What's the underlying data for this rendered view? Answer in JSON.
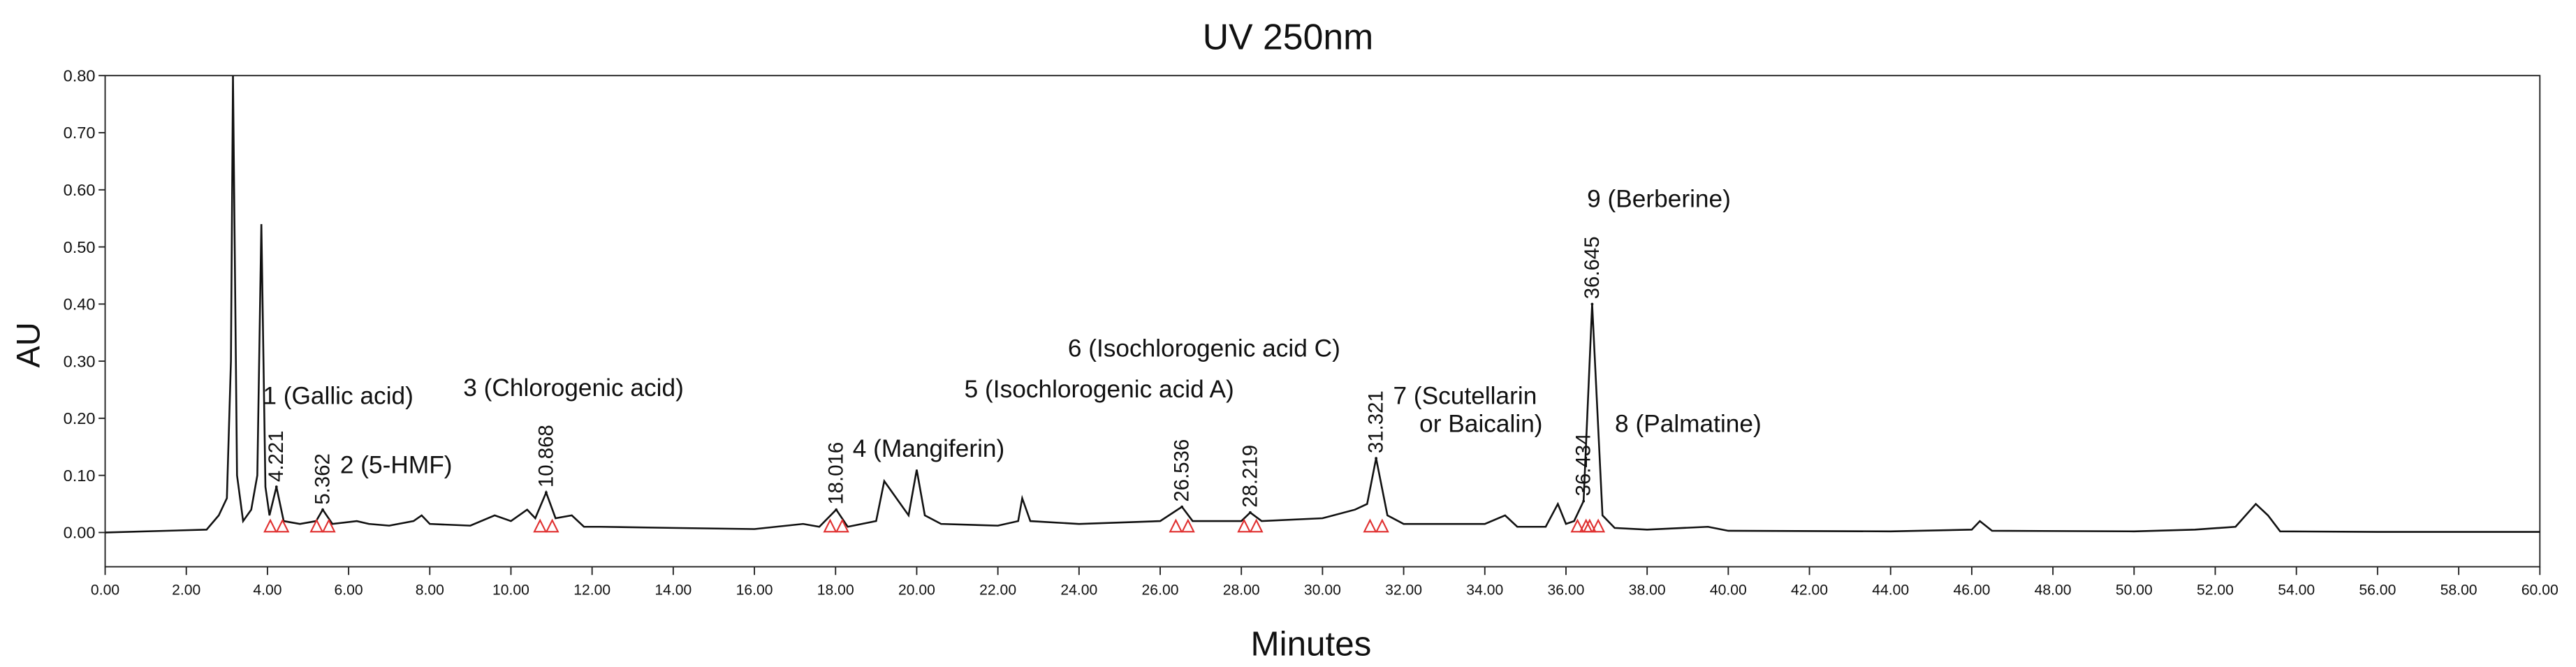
{
  "chart_data": {
    "type": "line",
    "title": "UV 250nm",
    "x_label": "Minutes",
    "y_label": "AU",
    "xlim": [
      0,
      60
    ],
    "ylim": [
      -0.06,
      0.8
    ],
    "xticks": [
      {
        "value": 0,
        "label": "0.00"
      },
      {
        "value": 2,
        "label": "2.00"
      },
      {
        "value": 4,
        "label": "4.00"
      },
      {
        "value": 6,
        "label": "6.00"
      },
      {
        "value": 8,
        "label": "8.00"
      },
      {
        "value": 10,
        "label": "10.00"
      },
      {
        "value": 12,
        "label": "12.00"
      },
      {
        "value": 14,
        "label": "14.00"
      },
      {
        "value": 16,
        "label": "16.00"
      },
      {
        "value": 18,
        "label": "18.00"
      },
      {
        "value": 20,
        "label": "20.00"
      },
      {
        "value": 22,
        "label": "22.00"
      },
      {
        "value": 24,
        "label": "24.00"
      },
      {
        "value": 26,
        "label": "26.00"
      },
      {
        "value": 28,
        "label": "28.00"
      },
      {
        "value": 30,
        "label": "30.00"
      },
      {
        "value": 32,
        "label": "32.00"
      },
      {
        "value": 34,
        "label": "34.00"
      },
      {
        "value": 36,
        "label": "36.00"
      },
      {
        "value": 38,
        "label": "38.00"
      },
      {
        "value": 40,
        "label": "40.00"
      },
      {
        "value": 42,
        "label": "42.00"
      },
      {
        "value": 44,
        "label": "44.00"
      },
      {
        "value": 46,
        "label": "46.00"
      },
      {
        "value": 48,
        "label": "48.00"
      },
      {
        "value": 50,
        "label": "50.00"
      },
      {
        "value": 52,
        "label": "52.00"
      },
      {
        "value": 54,
        "label": "54.00"
      },
      {
        "value": 56,
        "label": "56.00"
      },
      {
        "value": 58,
        "label": "58.00"
      },
      {
        "value": 60,
        "label": "60.00"
      }
    ],
    "yticks": [
      {
        "value": 0,
        "label": "0.00"
      },
      {
        "value": 0.1,
        "label": "0.10"
      },
      {
        "value": 0.2,
        "label": "0.20"
      },
      {
        "value": 0.3,
        "label": "0.30"
      },
      {
        "value": 0.4,
        "label": "0.40"
      },
      {
        "value": 0.5,
        "label": "0.50"
      },
      {
        "value": 0.6,
        "label": "0.60"
      },
      {
        "value": 0.7,
        "label": "0.70"
      },
      {
        "value": 0.8,
        "label": "0.80"
      }
    ],
    "color": "#111111",
    "x": [
      0,
      2.5,
      2.8,
      3.0,
      3.1,
      3.15,
      3.25,
      3.4,
      3.6,
      3.75,
      3.85,
      3.95,
      4.05,
      4.221,
      4.4,
      4.8,
      5.2,
      5.362,
      5.6,
      6.2,
      6.5,
      7.0,
      7.6,
      7.8,
      8.0,
      9.0,
      9.6,
      10.0,
      10.4,
      10.6,
      10.868,
      11.1,
      11.5,
      11.8,
      12.2,
      14,
      16,
      17.2,
      17.6,
      18.016,
      18.3,
      19,
      19.2,
      19.5,
      19.8,
      20.0,
      20.2,
      20.6,
      22,
      22.5,
      22.6,
      22.8,
      24,
      26,
      26.536,
      26.8,
      28,
      28.219,
      28.5,
      30,
      30.8,
      31.1,
      31.321,
      31.6,
      32,
      34,
      34.5,
      34.8,
      35.5,
      35.8,
      36.0,
      36.2,
      36.434,
      36.645,
      36.9,
      37.2,
      38,
      39.5,
      40,
      44,
      46,
      46.2,
      46.5,
      50,
      51.5,
      52.5,
      53,
      53.3,
      53.6,
      56,
      60
    ],
    "values": [
      0.0,
      0.005,
      0.03,
      0.06,
      0.3,
      0.8,
      0.1,
      0.02,
      0.04,
      0.1,
      0.54,
      0.08,
      0.03,
      0.08,
      0.02,
      0.015,
      0.02,
      0.04,
      0.015,
      0.02,
      0.015,
      0.012,
      0.02,
      0.03,
      0.015,
      0.012,
      0.03,
      0.02,
      0.04,
      0.025,
      0.07,
      0.025,
      0.03,
      0.01,
      0.01,
      0.008,
      0.006,
      0.015,
      0.01,
      0.04,
      0.01,
      0.02,
      0.09,
      0.06,
      0.03,
      0.11,
      0.03,
      0.015,
      0.012,
      0.02,
      0.06,
      0.02,
      0.015,
      0.02,
      0.045,
      0.02,
      0.02,
      0.035,
      0.02,
      0.025,
      0.04,
      0.05,
      0.13,
      0.03,
      0.015,
      0.015,
      0.03,
      0.01,
      0.01,
      0.05,
      0.015,
      0.02,
      0.055,
      0.4,
      0.03,
      0.008,
      0.005,
      0.01,
      0.003,
      0.002,
      0.005,
      0.02,
      0.003,
      0.002,
      0.005,
      0.01,
      0.05,
      0.03,
      0.002,
      0.001,
      0.001
    ],
    "peaks": {
      "x": [
        4.221,
        5.362,
        10.868,
        18.016,
        26.536,
        28.219,
        31.321,
        36.434,
        36.645
      ],
      "values": [
        0.08,
        0.04,
        0.07,
        0.04,
        0.045,
        0.035,
        0.13,
        0.055,
        0.4
      ]
    },
    "annotations": [
      [
        "1 (Gallic acid)"
      ],
      [
        "2 (5-HMF)"
      ],
      [
        "3 (Chlorogenic acid)"
      ],
      [
        "4 (Mangiferin)"
      ],
      [
        "5 (Isochlorogenic acid A)"
      ],
      [
        "6 (Isochlorogenic acid C)"
      ],
      [
        "7 (Scutellarin",
        "or Baicalin)"
      ],
      [
        "8 (Palmatine)"
      ],
      [
        "9 (Berberine)"
      ]
    ]
  }
}
